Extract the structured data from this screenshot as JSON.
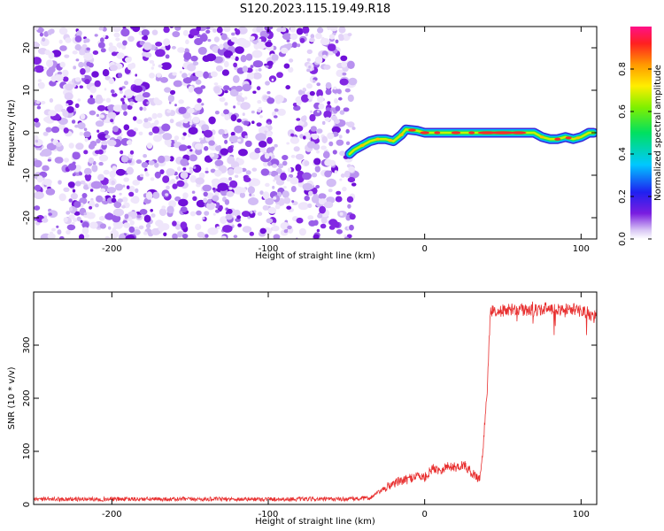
{
  "title": "S120.2023.115.19.49.R18",
  "chart_data": [
    {
      "type": "heatmap",
      "title": "S120.2023.115.19.49.R18",
      "xlabel": "Height of straight line (km)",
      "ylabel": "Frequency (Hz)",
      "xlim": [
        -250,
        110
      ],
      "ylim": [
        -25,
        25
      ],
      "xticks": [
        -200,
        -100,
        0,
        100
      ],
      "yticks": [
        -20,
        -10,
        0,
        10,
        20
      ],
      "noise_region_x": [
        -250,
        -45
      ],
      "signal_track": {
        "x": [
          -48,
          -45,
          -40,
          -35,
          -30,
          -25,
          -20,
          -15,
          -12,
          -5,
          0,
          10,
          20,
          30,
          40,
          50,
          60,
          70,
          75,
          80,
          85,
          90,
          95,
          100,
          105,
          108
        ],
        "freq": [
          -5,
          -4,
          -3,
          -2,
          -1.5,
          -1.5,
          -2,
          -0.5,
          0.8,
          0.5,
          0,
          0,
          0,
          0,
          0,
          0,
          0,
          0,
          -1,
          -1.5,
          -1.5,
          -1,
          -1.5,
          -1,
          0,
          0
        ]
      },
      "colorbar": {
        "label": "Normalized spectral amplitude",
        "ticks": [
          0.0,
          0.2,
          0.4,
          0.6,
          0.8
        ],
        "range": [
          0,
          1
        ]
      }
    },
    {
      "type": "line",
      "xlabel": "Height of straight line (km)",
      "ylabel": "SNR (10 * v/v)",
      "xlim": [
        -250,
        110
      ],
      "ylim": [
        0,
        400
      ],
      "xticks": [
        -200,
        -100,
        0,
        100
      ],
      "yticks": [
        0,
        100,
        200,
        300
      ],
      "color": "#e83030",
      "series": [
        {
          "x": [
            -250,
            -200,
            -150,
            -100,
            -50,
            -35,
            -30,
            -20,
            -10,
            -5,
            0,
            5,
            10,
            15,
            20,
            25,
            30,
            35,
            37,
            39,
            40,
            41,
            42,
            43,
            45,
            50,
            60,
            70,
            80,
            90,
            100,
            105,
            108,
            110
          ],
          "values": [
            10,
            10,
            10,
            10,
            10,
            12,
            22,
            40,
            48,
            55,
            50,
            68,
            65,
            72,
            70,
            75,
            60,
            48,
            90,
            180,
            210,
            300,
            360,
            365,
            365,
            365,
            368,
            365,
            370,
            368,
            365,
            360,
            350,
            362
          ]
        }
      ]
    }
  ]
}
